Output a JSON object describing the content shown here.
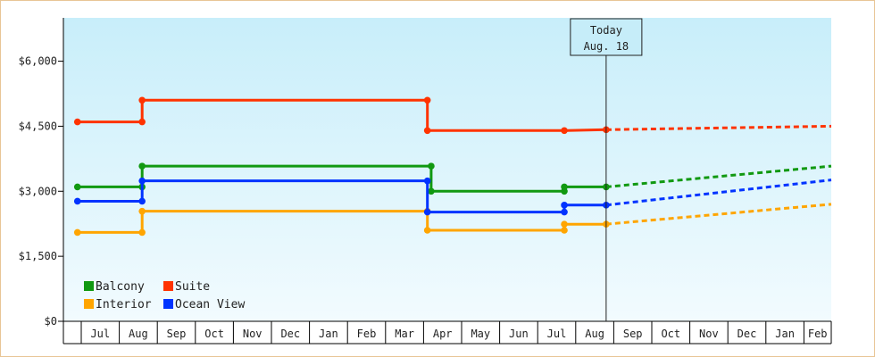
{
  "chart_data": {
    "type": "line",
    "title": "",
    "xlabel": "",
    "ylabel": "",
    "ylim": [
      0,
      7000
    ],
    "y_ticks": [
      0,
      1500,
      3000,
      4500,
      6000
    ],
    "y_tick_labels": [
      "$0",
      "$1,500",
      "$3,000",
      "$4,500",
      "$6,000"
    ],
    "x_labels": [
      "Jul",
      "Aug",
      "Sep",
      "Oct",
      "Nov",
      "Dec",
      "Jan",
      "Feb",
      "Mar",
      "Apr",
      "May",
      "Jun",
      "Jul",
      "Aug",
      "Sep",
      "Oct",
      "Nov",
      "Dec",
      "Jan",
      "Feb"
    ],
    "annotation": {
      "lines": [
        "Today",
        "Aug. 18"
      ],
      "month_index": 13.8
    },
    "legend_position": "bottom-left",
    "grid": false,
    "colors": {
      "Balcony": "#119911",
      "Suite": "#ff3300",
      "Interior": "#ffa500",
      "Ocean View": "#0033ff",
      "background_top": "#c8eefa",
      "background_bottom": "#f2fbfe"
    },
    "series": [
      {
        "name": "Balcony",
        "steps": [
          [
            -0.1,
            3100
          ],
          [
            1.6,
            3100
          ],
          [
            1.6,
            3580
          ],
          [
            9.2,
            3580
          ],
          [
            9.2,
            3000
          ],
          [
            12.7,
            3000
          ],
          [
            12.7,
            3100
          ],
          [
            13.8,
            3100
          ]
        ],
        "markers": [
          [
            -0.1,
            3100
          ],
          [
            1.6,
            3100
          ],
          [
            1.6,
            3580
          ],
          [
            9.2,
            3580
          ],
          [
            9.2,
            3000
          ],
          [
            12.7,
            3000
          ],
          [
            12.7,
            3100
          ],
          [
            13.8,
            3100
          ]
        ],
        "forecast": [
          [
            13.8,
            3100
          ],
          [
            20.5,
            3580
          ]
        ]
      },
      {
        "name": "Suite",
        "steps": [
          [
            -0.1,
            4600
          ],
          [
            1.6,
            4600
          ],
          [
            1.6,
            5100
          ],
          [
            9.1,
            5100
          ],
          [
            9.1,
            4400
          ],
          [
            12.7,
            4400
          ],
          [
            13.8,
            4420
          ]
        ],
        "markers": [
          [
            -0.1,
            4600
          ],
          [
            1.6,
            4600
          ],
          [
            1.6,
            5100
          ],
          [
            9.1,
            5100
          ],
          [
            9.1,
            4400
          ],
          [
            12.7,
            4400
          ],
          [
            13.8,
            4420
          ]
        ],
        "forecast": [
          [
            13.8,
            4420
          ],
          [
            20.5,
            4500
          ]
        ]
      },
      {
        "name": "Interior",
        "steps": [
          [
            -0.1,
            2050
          ],
          [
            1.6,
            2050
          ],
          [
            1.6,
            2540
          ],
          [
            9.1,
            2540
          ],
          [
            9.1,
            2100
          ],
          [
            12.7,
            2100
          ],
          [
            12.7,
            2240
          ],
          [
            13.8,
            2240
          ]
        ],
        "markers": [
          [
            -0.1,
            2050
          ],
          [
            1.6,
            2050
          ],
          [
            1.6,
            2540
          ],
          [
            9.1,
            2540
          ],
          [
            9.1,
            2100
          ],
          [
            12.7,
            2100
          ],
          [
            12.7,
            2240
          ],
          [
            13.8,
            2240
          ]
        ],
        "forecast": [
          [
            13.8,
            2240
          ],
          [
            20.5,
            2700
          ]
        ]
      },
      {
        "name": "Ocean View",
        "steps": [
          [
            -0.1,
            2770
          ],
          [
            1.6,
            2770
          ],
          [
            1.6,
            3240
          ],
          [
            9.1,
            3240
          ],
          [
            9.1,
            2520
          ],
          [
            12.7,
            2520
          ],
          [
            12.7,
            2680
          ],
          [
            13.8,
            2680
          ]
        ],
        "markers": [
          [
            -0.1,
            2770
          ],
          [
            1.6,
            2770
          ],
          [
            1.6,
            3240
          ],
          [
            9.1,
            3240
          ],
          [
            9.1,
            2520
          ],
          [
            12.7,
            2520
          ],
          [
            12.7,
            2680
          ],
          [
            13.8,
            2680
          ]
        ],
        "forecast": [
          [
            13.8,
            2680
          ],
          [
            20.5,
            3260
          ]
        ]
      }
    ]
  }
}
